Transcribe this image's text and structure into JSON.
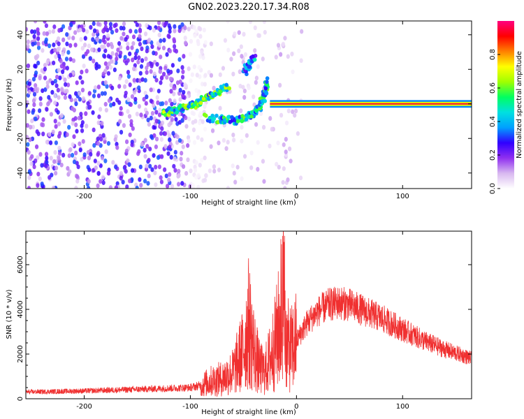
{
  "title": "GN02.2023.220.17.34.R08",
  "chart_data": [
    {
      "type": "heatmap",
      "xlabel": "Height of straight line (km)",
      "ylabel": "Frequency (Hz)",
      "xlim": [
        -255,
        165
      ],
      "ylim": [
        -49,
        48
      ],
      "xticks": [
        -200,
        -100,
        0,
        100
      ],
      "yticks": [
        -40,
        -20,
        0,
        20,
        40
      ],
      "colorbar": {
        "label": "Normalized spectral amplitude",
        "range": [
          0,
          1
        ],
        "ticks": [
          "0.0",
          "0.2",
          "0.4",
          "0.6",
          "0.8"
        ],
        "colormap": [
          "#ffffff",
          "#d8b8f0",
          "#9030f0",
          "#3000ff",
          "#00a0ff",
          "#00e0e0",
          "#00ff60",
          "#a0ff00",
          "#ffff00",
          "#ff8000",
          "#ff0000",
          "#ff0080"
        ]
      },
      "features": [
        {
          "name": "broadband noise",
          "x_range": [
            -255,
            -85
          ],
          "y_range": [
            -49,
            48
          ],
          "amplitude": 0.15
        },
        {
          "name": "upper arc",
          "points": [
            [
              -125,
              -5
            ],
            [
              -110,
              -3
            ],
            [
              -95,
              0
            ],
            [
              -80,
              5
            ],
            [
              -65,
              10
            ]
          ],
          "amplitude": 0.5
        },
        {
          "name": "small streak",
          "points": [
            [
              -50,
              18
            ],
            [
              -45,
              22
            ],
            [
              -40,
              27
            ]
          ],
          "amplitude": 0.35
        },
        {
          "name": "lower arc",
          "points": [
            [
              -85,
              -8
            ],
            [
              -70,
              -9
            ],
            [
              -55,
              -10
            ],
            [
              -45,
              -7
            ],
            [
              -35,
              -2
            ],
            [
              -30,
              5
            ],
            [
              -28,
              13
            ]
          ],
          "amplitude": 0.45
        },
        {
          "name": "carrier line",
          "x_range": [
            -25,
            165
          ],
          "y": 0,
          "amplitude": 0.95
        }
      ]
    },
    {
      "type": "line",
      "xlabel": "Height of straight line (km)",
      "ylabel": "SNR (10 * v/v)",
      "xlim": [
        -255,
        165
      ],
      "ylim": [
        0,
        7500
      ],
      "xticks": [
        -200,
        -100,
        0,
        100
      ],
      "yticks": [
        0,
        2000,
        4000,
        6000
      ],
      "series": [
        {
          "color": "#f03030",
          "x": [
            -255,
            -200,
            -150,
            -100,
            -90,
            -80,
            -70,
            -60,
            -50,
            -45,
            -40,
            -35,
            -30,
            -25,
            -20,
            -15,
            -12,
            -10,
            -5,
            0,
            5,
            10,
            20,
            30,
            40,
            50,
            60,
            80,
            100,
            120,
            140,
            165
          ],
          "y": [
            300,
            350,
            420,
            500,
            600,
            800,
            900,
            1200,
            2200,
            3400,
            2200,
            1400,
            1200,
            1800,
            2500,
            3500,
            4500,
            2500,
            2200,
            2600,
            3000,
            3400,
            3900,
            4200,
            4300,
            4200,
            4000,
            3600,
            3100,
            2600,
            2200,
            1800
          ]
        }
      ]
    }
  ]
}
